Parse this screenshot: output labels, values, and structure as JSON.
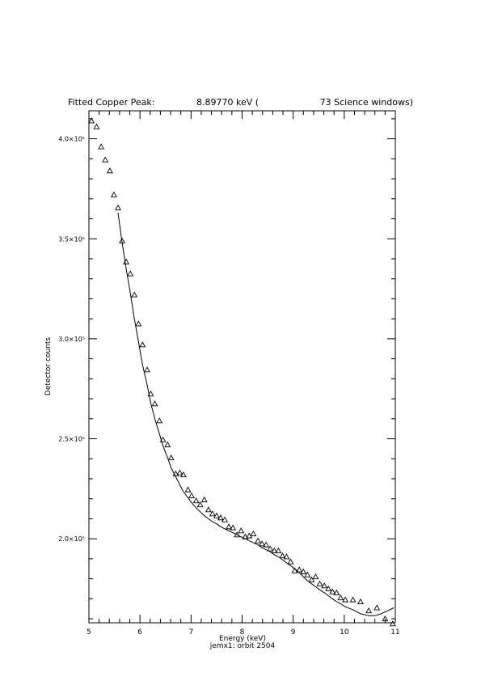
{
  "chart_data": {
    "type": "scatter",
    "title_parts": {
      "left": "Fitted Copper Peak:",
      "energy": "8.89770 keV (",
      "right": "73 Science windows)"
    },
    "xlabel": "Energy (keV)",
    "ylabel": "Detector counts",
    "subtitle_bottom": "jemx1: orbit 2504",
    "xlim": [
      5,
      11
    ],
    "ylim": [
      158000,
      414000
    ],
    "x_ticks": [
      5,
      6,
      7,
      8,
      9,
      10,
      11
    ],
    "x_tick_labels": [
      "5",
      "6",
      "7",
      "8",
      "9",
      "10",
      "11"
    ],
    "y_ticks": [
      200000,
      250000,
      300000,
      350000,
      400000
    ],
    "y_tick_labels": [
      "2.0×10⁵",
      "2.5×10⁵",
      "3.0×10⁵",
      "3.5×10⁵",
      "4.0×10⁵"
    ],
    "grid": false,
    "series": [
      {
        "marker": "triangle-open",
        "points": [
          [
            5.05,
            409000
          ],
          [
            5.15,
            406000
          ],
          [
            5.24,
            396000
          ],
          [
            5.32,
            389500
          ],
          [
            5.41,
            384000
          ],
          [
            5.49,
            372000
          ],
          [
            5.57,
            365500
          ],
          [
            5.65,
            349000
          ],
          [
            5.73,
            338500
          ],
          [
            5.81,
            332500
          ],
          [
            5.89,
            322000
          ],
          [
            5.97,
            307500
          ],
          [
            6.05,
            297000
          ],
          [
            6.14,
            284500
          ],
          [
            6.21,
            272500
          ],
          [
            6.29,
            267500
          ],
          [
            6.38,
            259000
          ],
          [
            6.45,
            249500
          ],
          [
            6.54,
            247000
          ],
          [
            6.61,
            240500
          ],
          [
            6.7,
            232500
          ],
          [
            6.78,
            233000
          ],
          [
            6.85,
            232000
          ],
          [
            6.94,
            224500
          ],
          [
            7.01,
            221500
          ],
          [
            7.1,
            219000
          ],
          [
            7.18,
            217000
          ],
          [
            7.26,
            219500
          ],
          [
            7.34,
            214500
          ],
          [
            7.42,
            212500
          ],
          [
            7.5,
            211500
          ],
          [
            7.58,
            210500
          ],
          [
            7.66,
            209500
          ],
          [
            7.74,
            206000
          ],
          [
            7.82,
            205500
          ],
          [
            7.9,
            202000
          ],
          [
            7.98,
            204000
          ],
          [
            8.06,
            201000
          ],
          [
            8.14,
            201500
          ],
          [
            8.22,
            202500
          ],
          [
            8.31,
            199000
          ],
          [
            8.39,
            197500
          ],
          [
            8.47,
            197000
          ],
          [
            8.55,
            195000
          ],
          [
            8.63,
            194000
          ],
          [
            8.71,
            194000
          ],
          [
            8.79,
            191500
          ],
          [
            8.87,
            191000
          ],
          [
            8.95,
            188500
          ],
          [
            9.03,
            184000
          ],
          [
            9.12,
            184500
          ],
          [
            9.2,
            183500
          ],
          [
            9.28,
            182000
          ],
          [
            9.36,
            179500
          ],
          [
            9.44,
            181000
          ],
          [
            9.52,
            177500
          ],
          [
            9.61,
            176500
          ],
          [
            9.69,
            175000
          ],
          [
            9.77,
            173500
          ],
          [
            9.85,
            173000
          ],
          [
            9.93,
            170500
          ],
          [
            10.02,
            169500
          ],
          [
            10.17,
            169500
          ],
          [
            10.32,
            168500
          ],
          [
            10.48,
            164000
          ],
          [
            10.64,
            165500
          ],
          [
            10.8,
            160000
          ],
          [
            10.95,
            157500
          ]
        ]
      },
      {
        "line": "fit",
        "x": [
          5.57,
          5.65,
          5.73,
          5.81,
          5.89,
          5.97,
          6.05,
          6.14,
          6.21,
          6.29,
          6.38,
          6.45,
          6.54,
          6.61,
          6.7,
          6.78,
          6.85,
          6.94,
          7.01,
          7.1,
          7.18,
          7.26,
          7.34,
          7.42,
          7.5,
          7.58,
          7.66,
          7.74,
          7.82,
          7.9,
          7.98,
          8.06,
          8.14,
          8.22,
          8.31,
          8.39,
          8.47,
          8.55,
          8.63,
          8.71,
          8.79,
          8.87,
          8.95,
          9.03,
          9.12,
          9.2,
          9.28,
          9.36,
          9.44,
          9.52,
          9.61,
          9.69,
          9.77,
          9.85,
          9.93,
          10.02,
          10.17,
          10.32,
          10.48,
          10.6,
          10.72,
          10.85,
          10.97
        ],
        "y": [
          363000,
          348000,
          335000,
          323000,
          310000,
          298500,
          287000,
          277000,
          268000,
          260000,
          252500,
          246500,
          240500,
          235500,
          231000,
          227000,
          223500,
          220500,
          218000,
          215500,
          213500,
          211500,
          210000,
          208500,
          207500,
          206000,
          205000,
          204000,
          203000,
          202000,
          201000,
          200000,
          199000,
          198000,
          197000,
          195500,
          194500,
          193500,
          192000,
          191000,
          189500,
          188000,
          186500,
          185000,
          183000,
          181000,
          179000,
          177500,
          176000,
          174500,
          173000,
          171500,
          170000,
          168500,
          167500,
          166000,
          164500,
          162500,
          161500,
          161500,
          162500,
          164000,
          165500
        ]
      }
    ]
  }
}
